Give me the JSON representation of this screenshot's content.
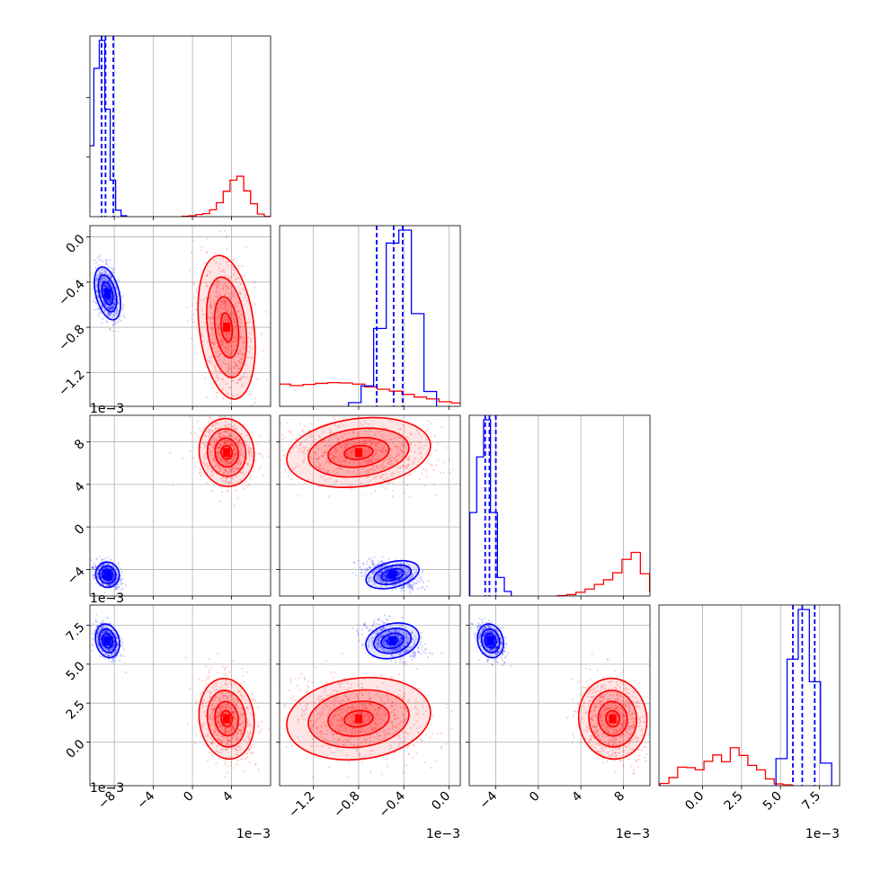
{
  "chart_data": {
    "type": "corner",
    "colors": {
      "red": "#ff0000",
      "blue": "#0000ff"
    },
    "grid": true,
    "parameters": [
      {
        "range": [
          -0.0105,
          0.008
        ],
        "ticks": [
          -0.008,
          -0.004,
          0.0,
          0.004
        ],
        "tick_labels": [
          "−8",
          "−4",
          "0",
          "4"
        ],
        "scale_label": "1e−3"
      },
      {
        "range": [
          -0.0015,
          0.0001
        ],
        "ticks": [
          -0.0012,
          -0.0008,
          -0.0004,
          0.0
        ],
        "tick_labels": [
          "−1.2",
          "−0.8",
          "−0.4",
          "0.0"
        ],
        "scale_label": "1e−3"
      },
      {
        "range": [
          -0.0065,
          0.0105
        ],
        "ticks": [
          -0.004,
          0.0,
          0.004,
          0.008
        ],
        "tick_labels": [
          "−4",
          "0",
          "4",
          "8"
        ],
        "scale_label": "1e−3"
      },
      {
        "range": [
          -0.0028,
          0.0088
        ],
        "ticks": [
          0.0,
          0.0025,
          0.005,
          0.0075
        ],
        "tick_labels": [
          "0.0",
          "2.5",
          "5.0",
          "7.5"
        ],
        "scale_label": "1e−3"
      }
    ],
    "populations": [
      {
        "color": "red",
        "means": [
          0.0035,
          -0.0008,
          0.007,
          0.0015
        ],
        "sds": [
          0.0014,
          0.00032,
          0.0016,
          0.0013
        ],
        "histograms": [
          [
            0.002,
            0.004,
            0.01,
            0.014,
            0.032,
            0.065,
            0.118,
            0.17,
            0.188,
            0.12,
            0.06,
            0.012,
            0.001
          ],
          [
            0.015,
            0.032,
            0.12,
            0.12,
            0.112,
            0.118,
            0.124,
            0.128,
            0.126,
            0.12,
            0.105,
            0.092,
            0.082,
            0.065,
            0.05,
            0.04,
            0.025,
            0.018,
            0.012
          ],
          [
            0.002,
            0.006,
            0.016,
            0.03,
            0.05,
            0.07,
            0.1,
            0.158,
            0.188,
            0.096,
            0.02,
            0.002
          ],
          [
            0.01,
            0.036,
            0.082,
            0.08,
            0.07,
            0.108,
            0.136,
            0.106,
            0.168,
            0.134,
            0.09,
            0.07,
            0.03,
            0.008,
            0.004
          ]
        ]
      },
      {
        "color": "blue",
        "means": [
          -0.0087,
          -0.0005,
          -0.0045,
          0.0065
        ],
        "sds": [
          0.0006,
          0.00012,
          0.0006,
          0.00055
        ],
        "quantiles": [
          [
            -0.0093,
            -0.0089,
            -0.0081
          ],
          [
            -0.00064,
            -0.00049,
            -0.00041
          ],
          [
            -0.005,
            -0.0046,
            -0.004
          ],
          [
            0.0058,
            0.0064,
            0.0072
          ]
        ],
        "histograms": [
          [
            0.33,
            0.69,
            0.82,
            0.5,
            0.17,
            0.03,
            0.004
          ],
          [
            0.02,
            0.11,
            0.42,
            0.88,
            0.95,
            0.5,
            0.08
          ],
          [
            0.36,
            0.6,
            0.76,
            0.36,
            0.08,
            0.02
          ],
          [
            0.12,
            0.56,
            0.78,
            0.46,
            0.1
          ]
        ]
      }
    ]
  }
}
